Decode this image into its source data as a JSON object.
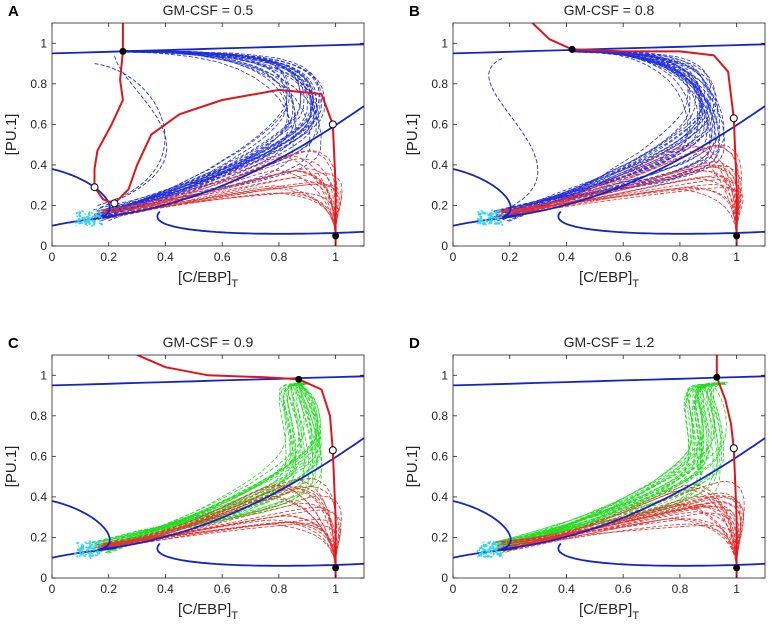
{
  "chart_data": [
    {
      "panel_letter": "A",
      "type": "line",
      "title": "GM-CSF = 0.5",
      "xlabel": "[C/EBP]",
      "xlabel_sub": "T",
      "ylabel": "[PU.1]",
      "xlim": [
        0,
        1.1
      ],
      "ylim": [
        0,
        1.1
      ],
      "xticks": [
        "0",
        "0.2",
        "0.4",
        "0.6",
        "0.8",
        "1"
      ],
      "yticks": [
        "0",
        "0.2",
        "0.4",
        "0.6",
        "0.8",
        "1"
      ],
      "trajectory_color": "#1f2fe0",
      "trajectory_count_upper": 30,
      "trajectory_count_lower": 20,
      "stable_points": [
        [
          0.25,
          0.96
        ],
        [
          1.0,
          0.05
        ]
      ],
      "unstable_points": [
        [
          0.15,
          0.29
        ],
        [
          0.22,
          0.21
        ],
        [
          0.99,
          0.6
        ]
      ],
      "red_nullcline": [
        [
          0.25,
          1.1
        ],
        [
          0.25,
          0.96
        ],
        [
          0.24,
          0.82
        ],
        [
          0.25,
          0.72
        ],
        [
          0.21,
          0.6
        ],
        [
          0.16,
          0.47
        ],
        [
          0.15,
          0.38
        ],
        [
          0.15,
          0.29
        ],
        [
          0.18,
          0.23
        ],
        [
          0.22,
          0.21
        ],
        [
          0.27,
          0.28
        ],
        [
          0.3,
          0.4
        ],
        [
          0.35,
          0.55
        ],
        [
          0.45,
          0.65
        ],
        [
          0.6,
          0.72
        ],
        [
          0.8,
          0.77
        ],
        [
          0.95,
          0.75
        ],
        [
          0.99,
          0.6
        ],
        [
          1.0,
          0.3
        ],
        [
          1.0,
          0.05
        ],
        [
          1.0,
          0.0
        ]
      ]
    },
    {
      "panel_letter": "B",
      "type": "line",
      "title": "GM-CSF = 0.8",
      "xlabel": "[C/EBP]",
      "xlabel_sub": "T",
      "ylabel": "[PU.1]",
      "xlim": [
        0,
        1.1
      ],
      "ylim": [
        0,
        1.1
      ],
      "xticks": [
        "0",
        "0.2",
        "0.4",
        "0.6",
        "0.8",
        "1"
      ],
      "yticks": [
        "0",
        "0.2",
        "0.4",
        "0.6",
        "0.8",
        "1"
      ],
      "trajectory_color": "#1f2fe0",
      "trajectory_count_upper": 32,
      "trajectory_count_lower": 22,
      "stable_points": [
        [
          0.42,
          0.97
        ],
        [
          1.0,
          0.05
        ]
      ],
      "unstable_points": [
        [
          0.99,
          0.63
        ]
      ],
      "red_nullcline": [
        [
          0.28,
          1.1
        ],
        [
          0.34,
          1.02
        ],
        [
          0.42,
          0.97
        ],
        [
          0.6,
          0.96
        ],
        [
          0.8,
          0.96
        ],
        [
          0.92,
          0.94
        ],
        [
          0.97,
          0.86
        ],
        [
          0.99,
          0.63
        ],
        [
          1.0,
          0.3
        ],
        [
          1.0,
          0.05
        ],
        [
          1.0,
          0.0
        ]
      ]
    },
    {
      "panel_letter": "C",
      "type": "line",
      "title": "GM-CSF = 0.9",
      "xlabel": "[C/EBP]",
      "xlabel_sub": "T",
      "ylabel": "[PU.1]",
      "xlim": [
        0,
        1.1
      ],
      "ylim": [
        0,
        1.1
      ],
      "xticks": [
        "0",
        "0.2",
        "0.4",
        "0.6",
        "0.8",
        "1"
      ],
      "yticks": [
        "0",
        "0.2",
        "0.4",
        "0.6",
        "0.8",
        "1"
      ],
      "trajectory_color": "#22dd22",
      "trajectory_count_upper": 34,
      "trajectory_count_lower": 24,
      "stable_points": [
        [
          0.87,
          0.98
        ],
        [
          1.0,
          0.05
        ]
      ],
      "unstable_points": [
        [
          0.99,
          0.63
        ]
      ],
      "red_nullcline": [
        [
          0.3,
          1.1
        ],
        [
          0.4,
          1.04
        ],
        [
          0.55,
          1.0
        ],
        [
          0.75,
          0.99
        ],
        [
          0.87,
          0.98
        ],
        [
          0.95,
          0.93
        ],
        [
          0.98,
          0.8
        ],
        [
          0.99,
          0.63
        ],
        [
          1.0,
          0.3
        ],
        [
          1.0,
          0.05
        ],
        [
          1.0,
          0.0
        ]
      ]
    },
    {
      "panel_letter": "D",
      "type": "line",
      "title": "GM-CSF = 1.2",
      "xlabel": "[C/EBP]",
      "xlabel_sub": "T",
      "ylabel": "[PU.1]",
      "xlim": [
        0,
        1.1
      ],
      "ylim": [
        0,
        1.1
      ],
      "xticks": [
        "0",
        "0.2",
        "0.4",
        "0.6",
        "0.8",
        "1"
      ],
      "yticks": [
        "0",
        "0.2",
        "0.4",
        "0.6",
        "0.8",
        "1"
      ],
      "trajectory_color": "#22dd22",
      "trajectory_count_upper": 34,
      "trajectory_count_lower": 26,
      "stable_points": [
        [
          0.93,
          0.99
        ],
        [
          1.0,
          0.05
        ]
      ],
      "unstable_points": [
        [
          0.99,
          0.64
        ]
      ],
      "red_nullcline": [
        [
          0.93,
          1.1
        ],
        [
          0.93,
          0.99
        ],
        [
          0.96,
          0.88
        ],
        [
          0.98,
          0.76
        ],
        [
          0.99,
          0.64
        ],
        [
          1.0,
          0.3
        ],
        [
          1.0,
          0.05
        ],
        [
          1.0,
          0.0
        ]
      ]
    }
  ],
  "colors": {
    "nullcline_blue": "#1426c8",
    "nullcline_red": "#e0151b",
    "lower_trajectories": "#e83030",
    "initial_cluster": "#33d6ee",
    "axis": "#262626"
  }
}
